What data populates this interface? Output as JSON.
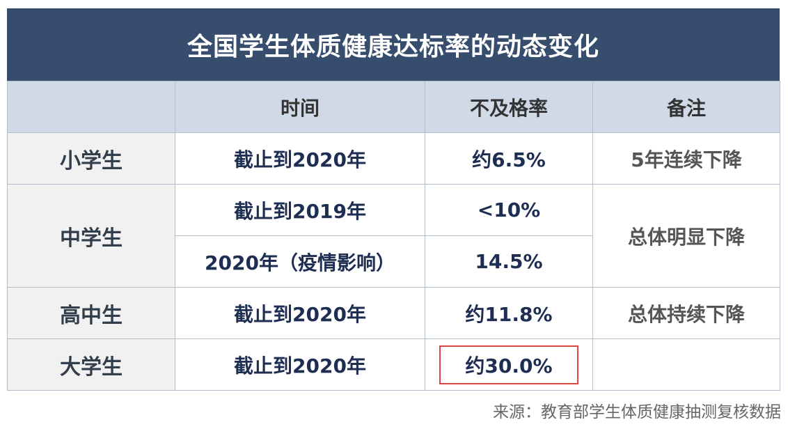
{
  "title": "全国学生体质健康达标率的动态变化",
  "table": {
    "headers": [
      "",
      "时间",
      "不及格率",
      "备注"
    ],
    "rows": {
      "primary": {
        "group": "小学生",
        "time": "截止到2020年",
        "rate": "约6.5%",
        "note": "5年连续下降"
      },
      "middle_a": {
        "group": "中学生",
        "time": "截止到2019年",
        "rate": "<10%",
        "note": "总体明显下降"
      },
      "middle_b": {
        "time": "2020年（疫情影响）",
        "rate": "14.5%"
      },
      "high": {
        "group": "高中生",
        "time": "截止到2020年",
        "rate": "约11.8%",
        "note": "总体持续下降"
      },
      "college": {
        "group": "大学生",
        "time": "截止到2020年",
        "rate": "约30.0%",
        "note": ""
      }
    }
  },
  "highlight_color": "#e0463f",
  "source": "来源：教育部学生体质健康抽测复核数据"
}
